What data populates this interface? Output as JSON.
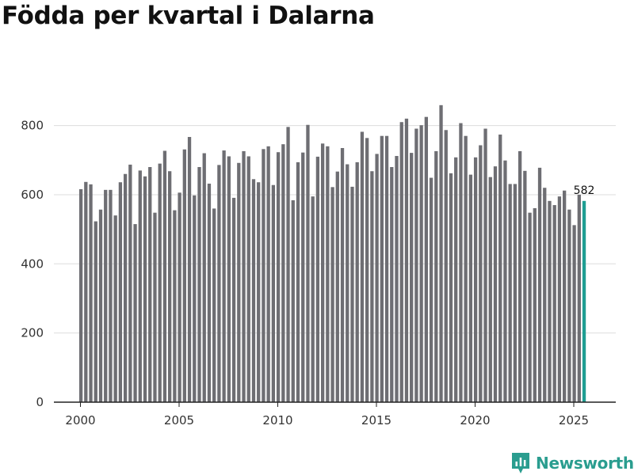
{
  "chart_data": {
    "type": "bar",
    "title": "Födda per kvartal i Dalarna",
    "x_ticks": [
      "2000",
      "2005",
      "2010",
      "2015",
      "2020",
      "2025"
    ],
    "y_ticks": [
      "0",
      "200",
      "400",
      "600",
      "800"
    ],
    "ylim": [
      0,
      900
    ],
    "start_year": 2000,
    "grid": true,
    "values": [
      616,
      637,
      630,
      523,
      557,
      614,
      614,
      540,
      636,
      660,
      687,
      515,
      670,
      653,
      680,
      548,
      690,
      727,
      668,
      555,
      606,
      731,
      767,
      598,
      680,
      720,
      632,
      560,
      686,
      728,
      711,
      591,
      692,
      726,
      711,
      645,
      636,
      732,
      740,
      628,
      723,
      746,
      796,
      584,
      694,
      722,
      802,
      595,
      710,
      748,
      740,
      622,
      667,
      735,
      688,
      623,
      694,
      782,
      764,
      668,
      718,
      770,
      770,
      680,
      712,
      810,
      820,
      721,
      791,
      801,
      825,
      649,
      726,
      859,
      787,
      662,
      708,
      807,
      770,
      658,
      708,
      743,
      791,
      651,
      682,
      774,
      699,
      631,
      631,
      726,
      669,
      548,
      561,
      678,
      620,
      582,
      570,
      595,
      612,
      557,
      512,
      600,
      582
    ],
    "bar_color": "#6e6e73",
    "highlight_color": "#1f9e93",
    "highlight_label": "582"
  },
  "brand": {
    "name": "Newsworthy",
    "icon": "newsworthy-logo-icon",
    "color": "#2a9d8f"
  }
}
